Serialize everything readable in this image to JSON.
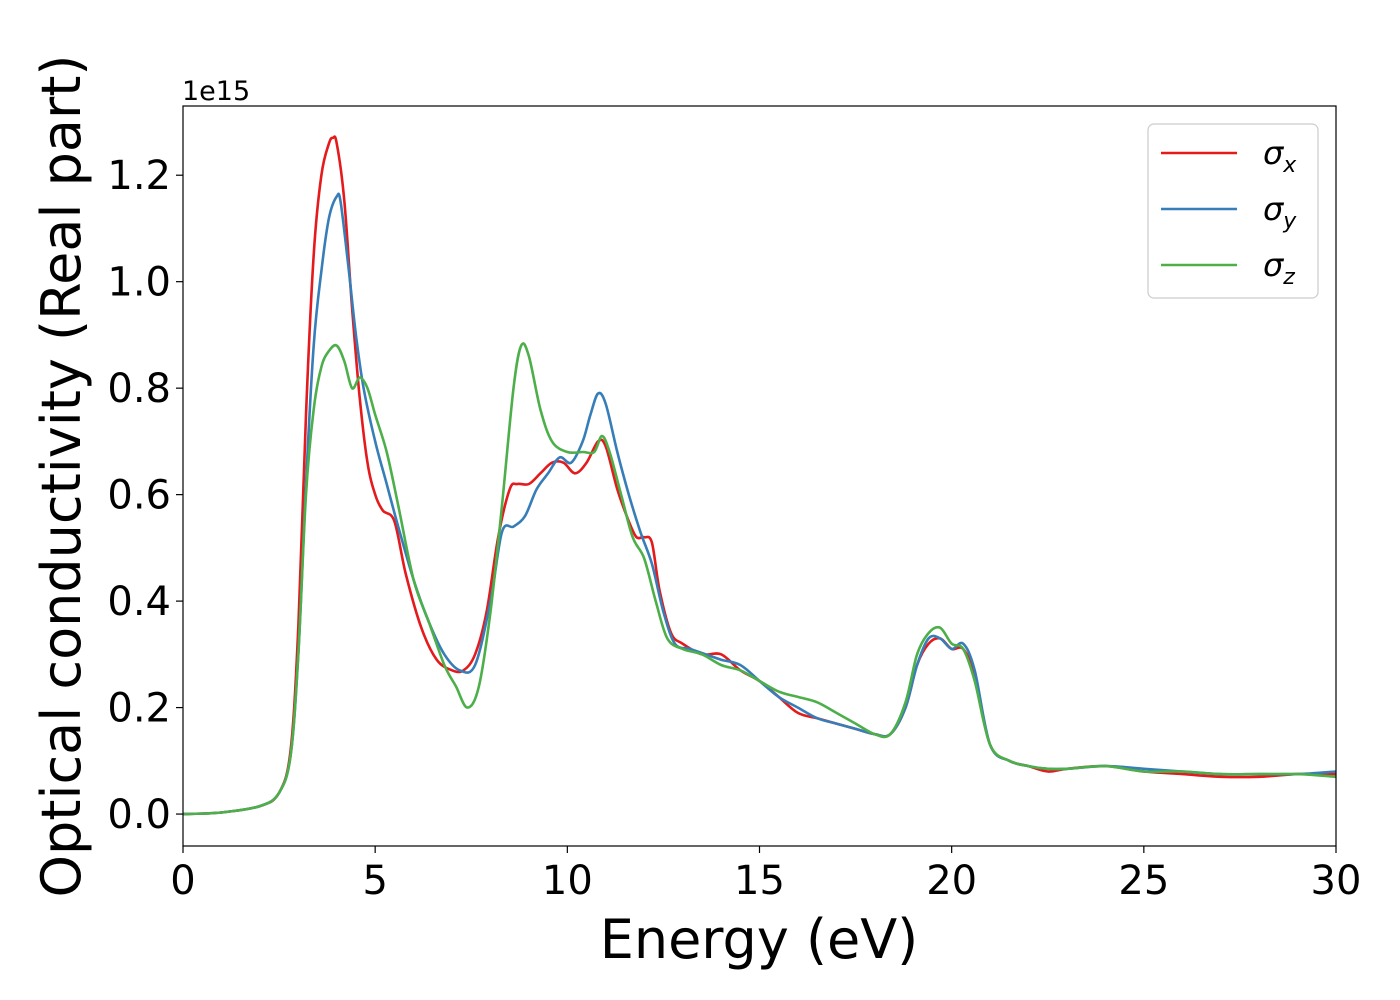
{
  "chart_data": {
    "type": "line",
    "xlabel": "Energy (eV)",
    "ylabel": "Optical conductivity (Real part)",
    "y_offset_label": "1e15",
    "xlim": [
      0,
      30
    ],
    "ylim": [
      -0.06,
      1.33
    ],
    "xticks": [
      0,
      5,
      10,
      15,
      20,
      25,
      30
    ],
    "yticks": [
      0.0,
      0.2,
      0.4,
      0.6,
      0.8,
      1.0,
      1.2
    ],
    "xtick_labels": [
      "0",
      "5",
      "10",
      "15",
      "20",
      "25",
      "30"
    ],
    "ytick_labels": [
      "0.0",
      "0.2",
      "0.4",
      "0.6",
      "0.8",
      "1.0",
      "1.2"
    ],
    "grid": false,
    "legend_position": "top-right",
    "series": [
      {
        "name": "σx",
        "base": "σ",
        "sub": "x",
        "color": "#e41a1c",
        "x": [
          0,
          1,
          2,
          2.5,
          2.8,
          3.0,
          3.2,
          3.4,
          3.6,
          3.8,
          3.9,
          4.0,
          4.2,
          4.4,
          4.6,
          4.8,
          5.0,
          5.2,
          5.5,
          5.8,
          6.2,
          6.6,
          7.0,
          7.3,
          7.6,
          7.9,
          8.2,
          8.5,
          8.7,
          9.0,
          9.3,
          9.6,
          9.9,
          10.2,
          10.5,
          10.8,
          11.0,
          11.3,
          11.6,
          11.8,
          12.0,
          12.2,
          12.4,
          12.7,
          13.0,
          13.5,
          14.0,
          14.5,
          15.0,
          15.5,
          16.0,
          16.5,
          17.0,
          17.5,
          18.0,
          18.4,
          18.8,
          19.1,
          19.4,
          19.7,
          20.0,
          20.3,
          20.6,
          21.0,
          21.5,
          22.0,
          22.5,
          23.0,
          24.0,
          25.0,
          26.0,
          27.0,
          28.0,
          29.0,
          30.0
        ],
        "y": [
          0.0,
          0.003,
          0.015,
          0.04,
          0.12,
          0.35,
          0.75,
          1.05,
          1.2,
          1.26,
          1.27,
          1.26,
          1.15,
          0.95,
          0.78,
          0.66,
          0.6,
          0.57,
          0.55,
          0.45,
          0.35,
          0.29,
          0.27,
          0.27,
          0.3,
          0.38,
          0.52,
          0.61,
          0.62,
          0.62,
          0.64,
          0.66,
          0.66,
          0.64,
          0.66,
          0.7,
          0.69,
          0.61,
          0.55,
          0.52,
          0.52,
          0.51,
          0.42,
          0.34,
          0.32,
          0.3,
          0.3,
          0.27,
          0.25,
          0.22,
          0.19,
          0.18,
          0.17,
          0.16,
          0.15,
          0.15,
          0.2,
          0.28,
          0.32,
          0.33,
          0.31,
          0.31,
          0.26,
          0.13,
          0.1,
          0.09,
          0.08,
          0.085,
          0.09,
          0.08,
          0.075,
          0.07,
          0.07,
          0.075,
          0.075
        ]
      },
      {
        "name": "σy",
        "base": "σ",
        "sub": "y",
        "color": "#377eb8",
        "x": [
          0,
          1,
          2,
          2.5,
          2.8,
          3.0,
          3.2,
          3.4,
          3.6,
          3.8,
          4.0,
          4.1,
          4.3,
          4.5,
          4.7,
          5.0,
          5.3,
          5.6,
          6.0,
          6.4,
          6.8,
          7.2,
          7.6,
          8.0,
          8.3,
          8.6,
          8.9,
          9.2,
          9.5,
          9.8,
          10.1,
          10.4,
          10.6,
          10.8,
          11.0,
          11.3,
          11.6,
          11.9,
          12.2,
          12.5,
          12.8,
          13.2,
          13.6,
          14.0,
          14.5,
          15.0,
          15.5,
          16.0,
          16.5,
          17.0,
          17.5,
          18.0,
          18.4,
          18.8,
          19.1,
          19.4,
          19.7,
          20.0,
          20.3,
          20.6,
          21.0,
          21.5,
          22.0,
          22.5,
          23.0,
          24.0,
          25.0,
          26.0,
          27.0,
          28.0,
          29.0,
          30.0
        ],
        "y": [
          0.0,
          0.003,
          0.015,
          0.04,
          0.11,
          0.3,
          0.62,
          0.88,
          1.02,
          1.12,
          1.16,
          1.15,
          1.03,
          0.9,
          0.8,
          0.7,
          0.62,
          0.54,
          0.44,
          0.36,
          0.3,
          0.27,
          0.28,
          0.4,
          0.53,
          0.54,
          0.56,
          0.61,
          0.64,
          0.67,
          0.66,
          0.7,
          0.75,
          0.79,
          0.77,
          0.68,
          0.6,
          0.53,
          0.47,
          0.38,
          0.32,
          0.31,
          0.3,
          0.29,
          0.28,
          0.25,
          0.22,
          0.2,
          0.18,
          0.17,
          0.16,
          0.15,
          0.15,
          0.2,
          0.28,
          0.33,
          0.33,
          0.31,
          0.32,
          0.27,
          0.13,
          0.1,
          0.09,
          0.085,
          0.085,
          0.09,
          0.085,
          0.08,
          0.075,
          0.075,
          0.075,
          0.08
        ]
      },
      {
        "name": "σz",
        "base": "σ",
        "sub": "z",
        "color": "#4daf4a",
        "x": [
          0,
          1,
          2,
          2.5,
          2.8,
          3.0,
          3.2,
          3.4,
          3.6,
          3.8,
          4.0,
          4.2,
          4.4,
          4.6,
          4.8,
          5.0,
          5.3,
          5.6,
          6.0,
          6.4,
          6.8,
          7.1,
          7.4,
          7.7,
          8.0,
          8.3,
          8.6,
          8.8,
          9.0,
          9.3,
          9.6,
          10.0,
          10.4,
          10.7,
          10.9,
          11.1,
          11.4,
          11.7,
          12.0,
          12.3,
          12.6,
          13.0,
          13.5,
          14.0,
          14.5,
          15.0,
          15.5,
          16.0,
          16.5,
          17.0,
          17.5,
          18.0,
          18.4,
          18.8,
          19.1,
          19.4,
          19.7,
          20.0,
          20.3,
          20.6,
          21.0,
          21.5,
          22.0,
          22.5,
          23.0,
          24.0,
          25.0,
          26.0,
          27.0,
          28.0,
          29.0,
          30.0
        ],
        "y": [
          0.0,
          0.003,
          0.015,
          0.04,
          0.11,
          0.3,
          0.6,
          0.76,
          0.84,
          0.87,
          0.88,
          0.85,
          0.8,
          0.82,
          0.8,
          0.75,
          0.68,
          0.58,
          0.44,
          0.36,
          0.28,
          0.24,
          0.2,
          0.24,
          0.38,
          0.58,
          0.8,
          0.88,
          0.86,
          0.76,
          0.7,
          0.68,
          0.68,
          0.68,
          0.71,
          0.68,
          0.6,
          0.52,
          0.48,
          0.4,
          0.33,
          0.31,
          0.3,
          0.28,
          0.27,
          0.25,
          0.23,
          0.22,
          0.21,
          0.19,
          0.17,
          0.15,
          0.15,
          0.21,
          0.3,
          0.34,
          0.35,
          0.32,
          0.31,
          0.25,
          0.13,
          0.1,
          0.09,
          0.085,
          0.085,
          0.09,
          0.08,
          0.08,
          0.075,
          0.075,
          0.075,
          0.07
        ]
      }
    ]
  }
}
